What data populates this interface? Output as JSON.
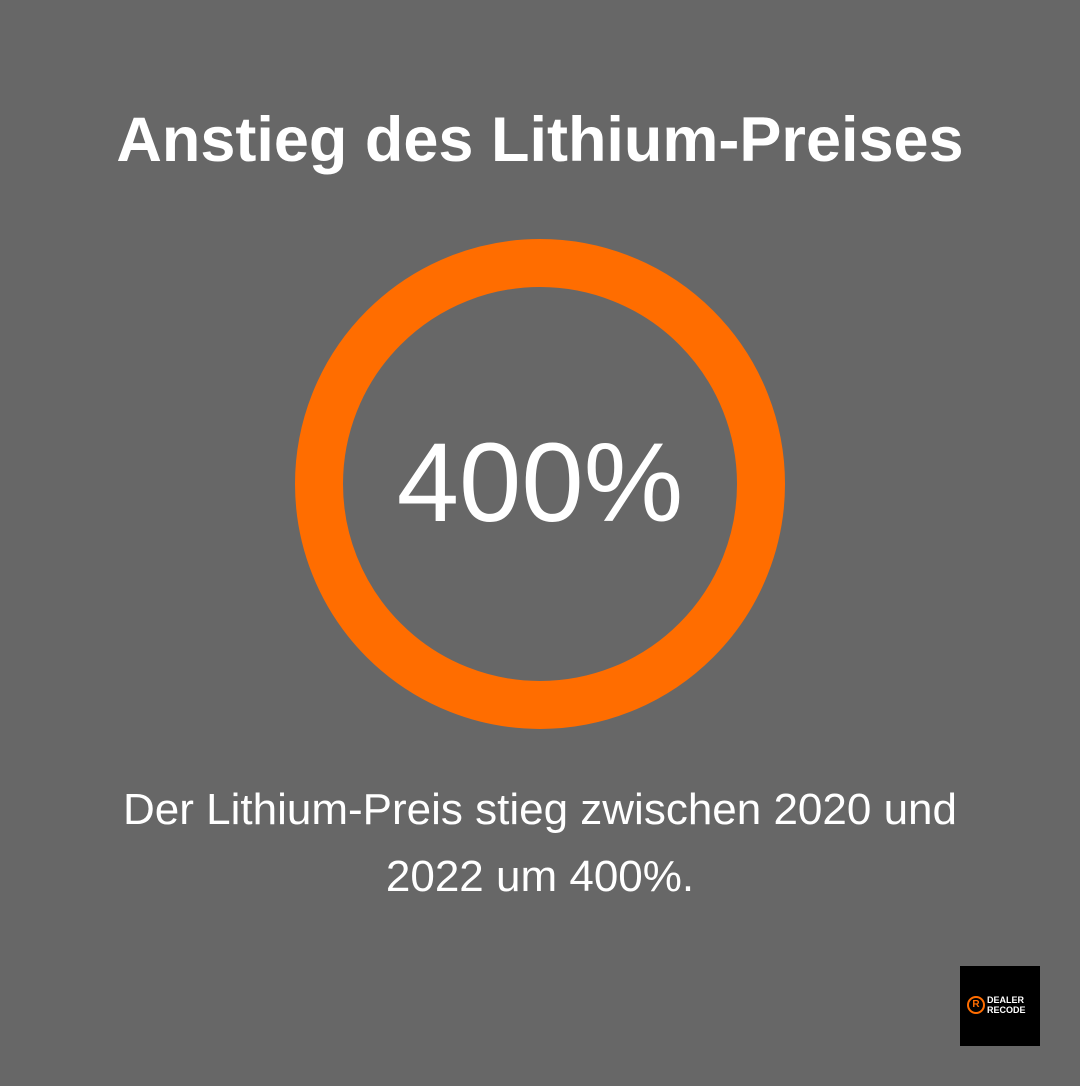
{
  "header": {
    "title": "Anstieg des Lithium-Preises"
  },
  "stat": {
    "value_label": "400%"
  },
  "description": "Der Lithium-Preis stieg zwischen 2020 und 2022 um 400%.",
  "logo": {
    "icon": "R",
    "line1": "DEALER",
    "line2": "RECODE"
  }
}
